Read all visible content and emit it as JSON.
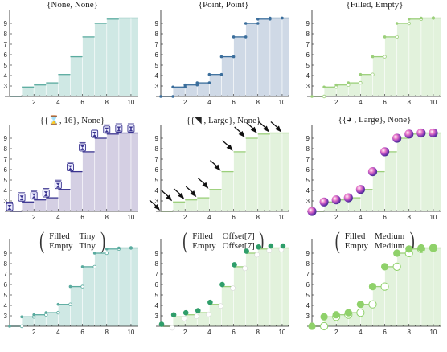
{
  "colors": {
    "fill_teal": "#cfe8e4",
    "line_teal": "#5aab9f",
    "fill_blue": "#cfd9e6",
    "line_blue": "#3b6e9c",
    "fill_purple": "#d4cfe3",
    "line_purple": "#3a3490",
    "fill_green": "#e2f2dc",
    "line_green": "#9bcf7a",
    "marker_green_light": "#8fd16a",
    "marker_green_dark": "#2f9e6a",
    "axis": "#222222"
  },
  "panels": [
    {
      "title": "{None, None}",
      "theme": "teal",
      "marker": "none"
    },
    {
      "title": "{Point, Point}",
      "theme": "blue",
      "marker": "point"
    },
    {
      "title": "{Filled, Empty}",
      "theme": "green",
      "marker": "filled-empty"
    },
    {
      "title": "{{⌛, 16}, None}",
      "theme": "purple",
      "marker": "glyph"
    },
    {
      "title": "{{◥ , Large}, None}",
      "theme": "green",
      "marker": "arrow"
    },
    {
      "title": "{{◕ , Large}, None}",
      "theme": "green",
      "marker": "sphere"
    },
    {
      "title_matrix": [
        [
          "Filled",
          "Tiny"
        ],
        [
          "Empty",
          "Tiny"
        ]
      ],
      "theme": "teal",
      "marker": "tiny"
    },
    {
      "title_matrix": [
        [
          "Filled",
          "Offset[7]"
        ],
        [
          "Empty",
          "Offset[7]"
        ]
      ],
      "theme": "green",
      "marker": "offset"
    },
    {
      "title_matrix": [
        [
          "Filled",
          "Medium"
        ],
        [
          "Empty",
          "Medium"
        ]
      ],
      "theme": "green",
      "marker": "medium"
    }
  ],
  "chart_data": {
    "type": "area",
    "x": [
      0,
      1,
      2,
      3,
      4,
      5,
      6,
      7,
      8,
      9,
      10
    ],
    "values": [
      2,
      2.9,
      3.1,
      3.3,
      4.1,
      5.8,
      7.7,
      9.0,
      9.4,
      9.5,
      9.5
    ],
    "xlim": [
      0,
      10.6
    ],
    "ylim": [
      2,
      10
    ],
    "xticks": [
      2,
      4,
      6,
      8,
      10
    ],
    "yticks": [
      3,
      4,
      5,
      6,
      7,
      8,
      9
    ]
  }
}
